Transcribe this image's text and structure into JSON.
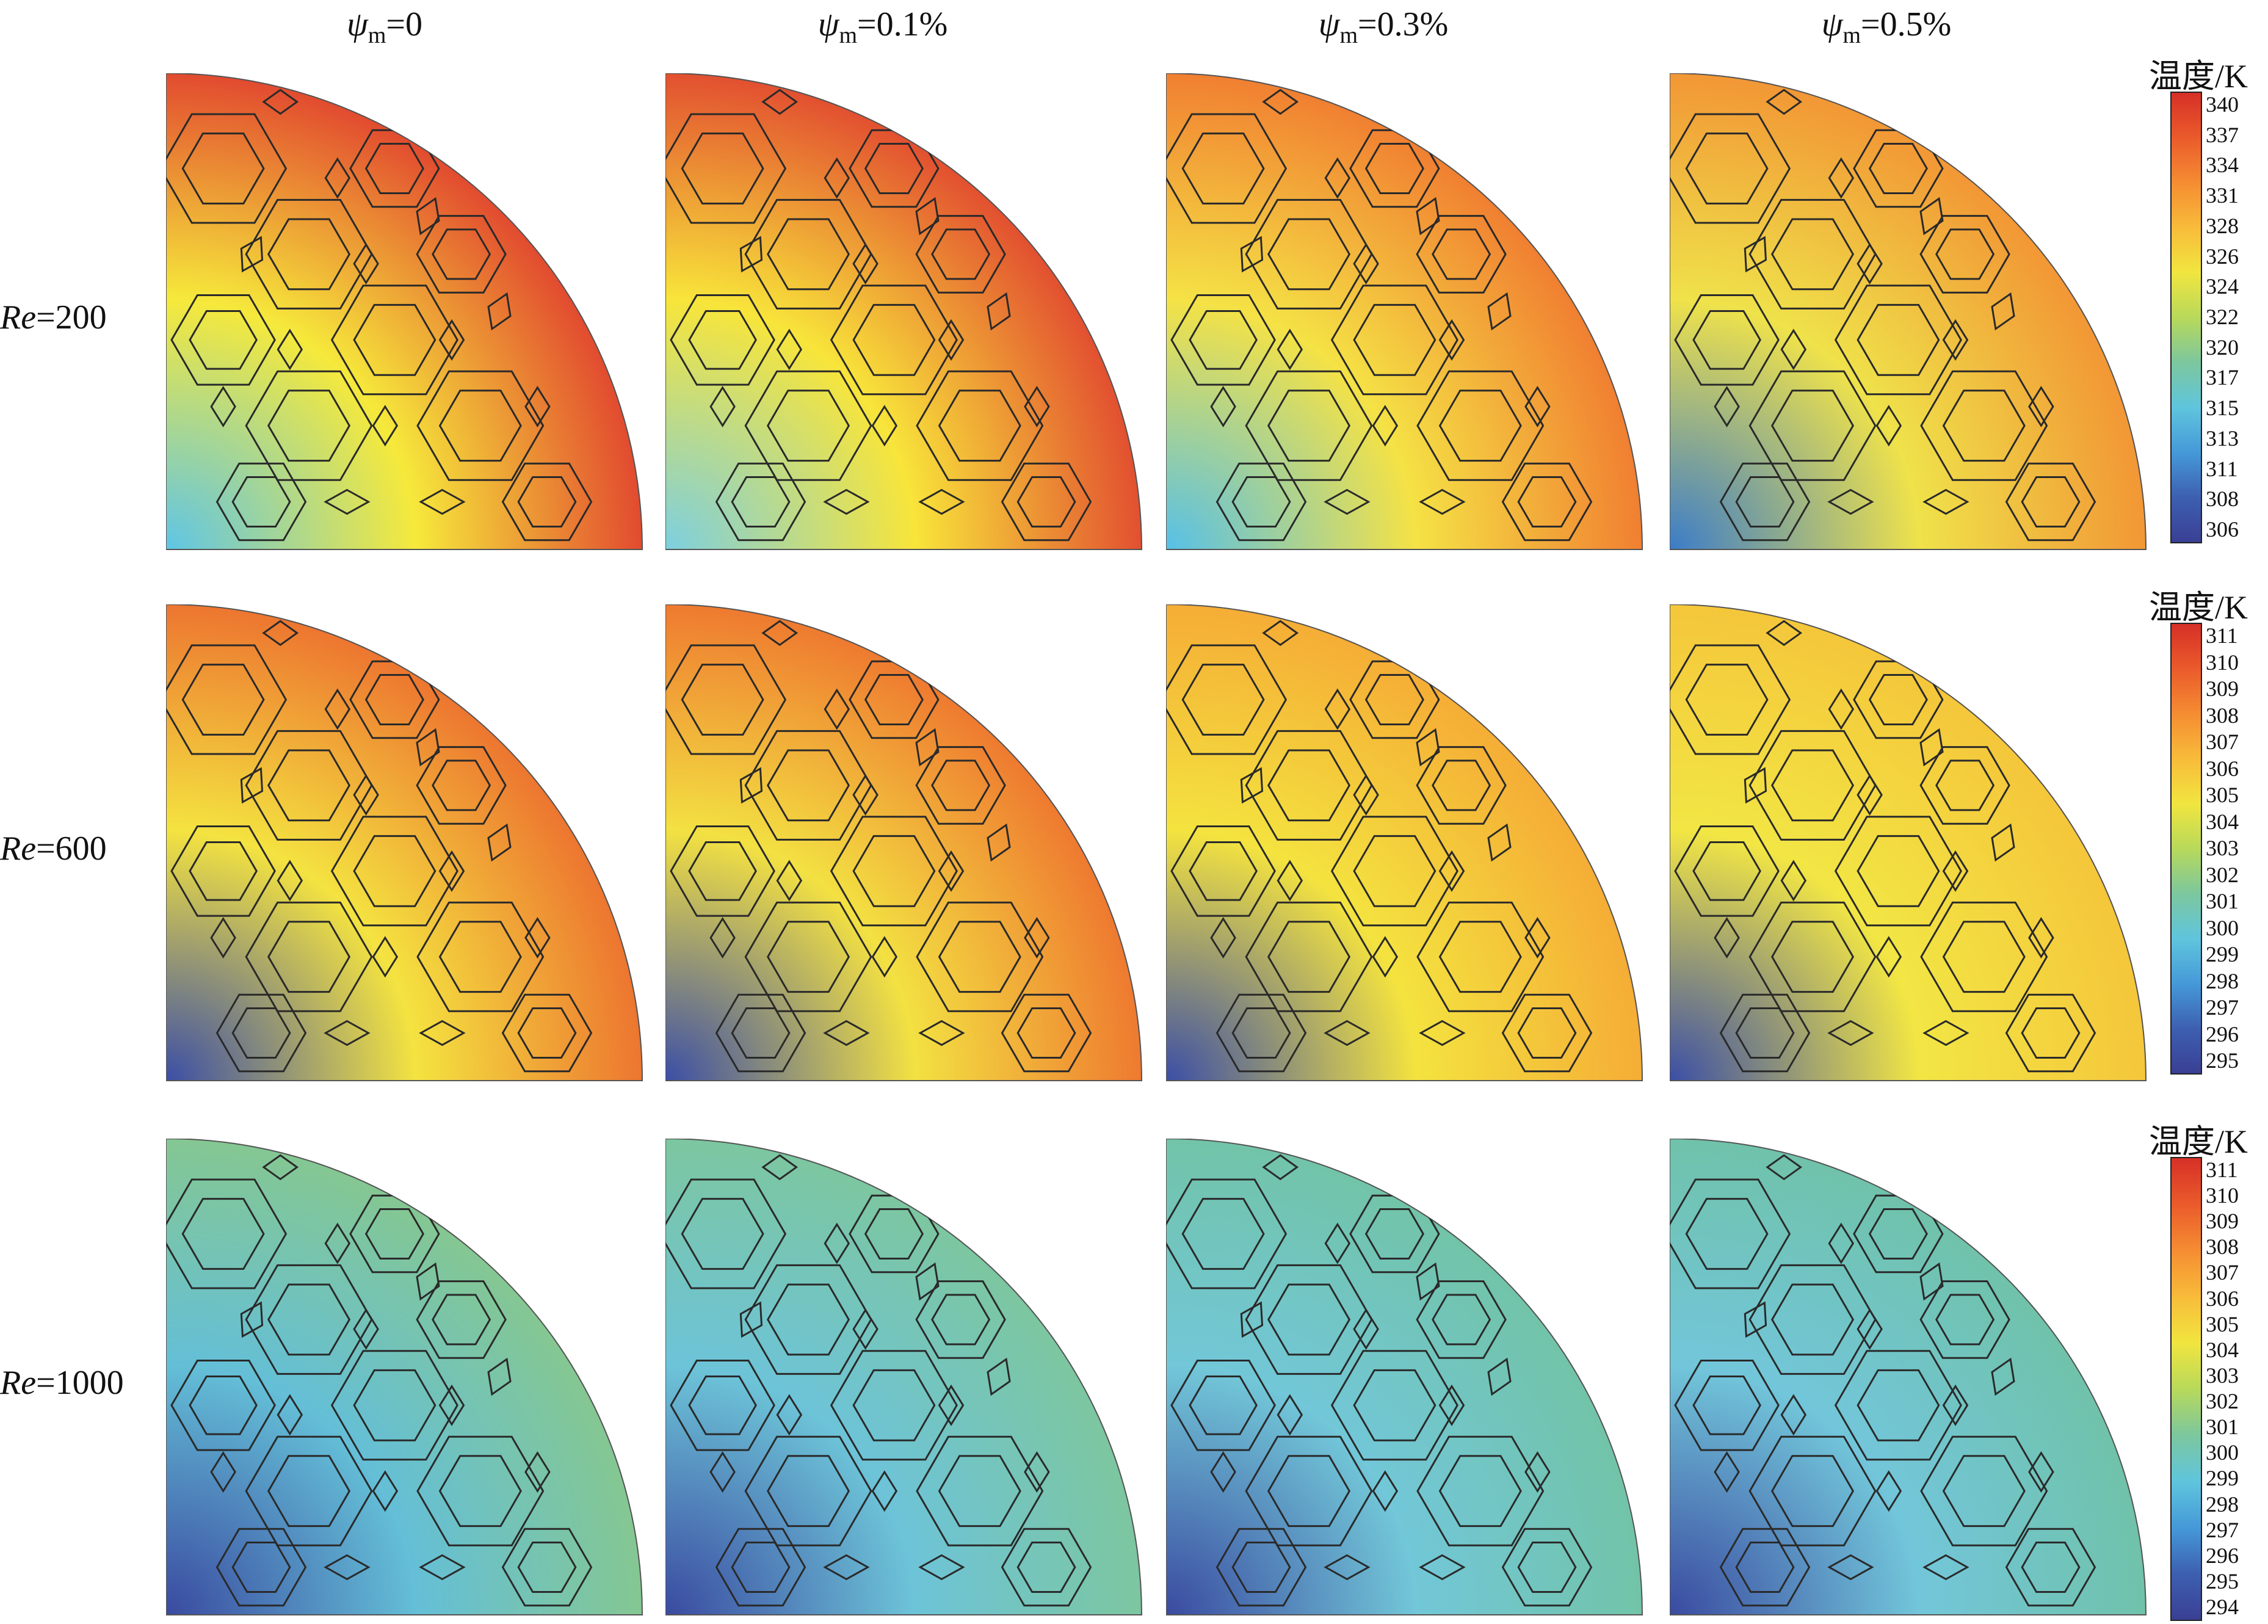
{
  "columns": [
    {
      "symbol": "ψ",
      "subscript": "m",
      "value": "=0"
    },
    {
      "symbol": "ψ",
      "subscript": "m",
      "value": "=0.1%"
    },
    {
      "symbol": "ψ",
      "subscript": "m",
      "value": "=0.3%"
    },
    {
      "symbol": "ψ",
      "subscript": "m",
      "value": "=0.5%"
    }
  ],
  "rows": [
    {
      "re_symbol": "Re",
      "re_value": "=200",
      "colorbar": {
        "title": "温度/K",
        "ticks": [
          "340",
          "337",
          "334",
          "331",
          "328",
          "326",
          "324",
          "322",
          "320",
          "317",
          "315",
          "313",
          "311",
          "308",
          "306"
        ]
      },
      "panels": [
        {
          "center": "#5ec5e6",
          "mid": "#f6e93b",
          "edge": "#e03a2e"
        },
        {
          "center": "#7ccfe0",
          "mid": "#f8e53a",
          "edge": "#e0402f"
        },
        {
          "center": "#56c0e8",
          "mid": "#f5e245",
          "edge": "#f0752f"
        },
        {
          "center": "#3b7cc9",
          "mid": "#efe24a",
          "edge": "#f28f33"
        }
      ]
    },
    {
      "re_symbol": "Re",
      "re_value": "=600",
      "colorbar": {
        "title": "温度/K",
        "ticks": [
          "311",
          "310",
          "309",
          "308",
          "307",
          "306",
          "305",
          "304",
          "303",
          "302",
          "301",
          "300",
          "299",
          "298",
          "297",
          "296",
          "295"
        ]
      },
      "panels": [
        {
          "center": "#3b4ea6",
          "mid": "#f4e340",
          "edge": "#ec6a2e"
        },
        {
          "center": "#3b4ea6",
          "mid": "#f3e142",
          "edge": "#ee6f2e"
        },
        {
          "center": "#3b4ea6",
          "mid": "#f4e33f",
          "edge": "#f5a735"
        },
        {
          "center": "#3b4ea6",
          "mid": "#f2e644",
          "edge": "#f5c33a"
        }
      ]
    },
    {
      "re_symbol": "Re",
      "re_value": "=1000",
      "colorbar": {
        "title": "温度/K",
        "ticks": [
          "311",
          "310",
          "309",
          "308",
          "307",
          "306",
          "305",
          "304",
          "303",
          "302",
          "301",
          "300",
          "299",
          "298",
          "297",
          "296",
          "295",
          "294"
        ]
      },
      "panels": [
        {
          "center": "#3a4aa0",
          "mid": "#64bfd7",
          "edge": "#88c88b"
        },
        {
          "center": "#3a4aa0",
          "mid": "#6dc4d8",
          "edge": "#7ec69a"
        },
        {
          "center": "#3a4aa0",
          "mid": "#72c7d8",
          "edge": "#72c3a3"
        },
        {
          "center": "#3a4aa0",
          "mid": "#72c6da",
          "edge": "#70c2a5"
        }
      ]
    }
  ],
  "colormap": [
    "#d62f27",
    "#ea5a2b",
    "#f58c32",
    "#f8bb3a",
    "#f1e53f",
    "#b8d95a",
    "#7cc79e",
    "#5fc5dd",
    "#4599d8",
    "#3d5fb0",
    "#3a3f94"
  ]
}
